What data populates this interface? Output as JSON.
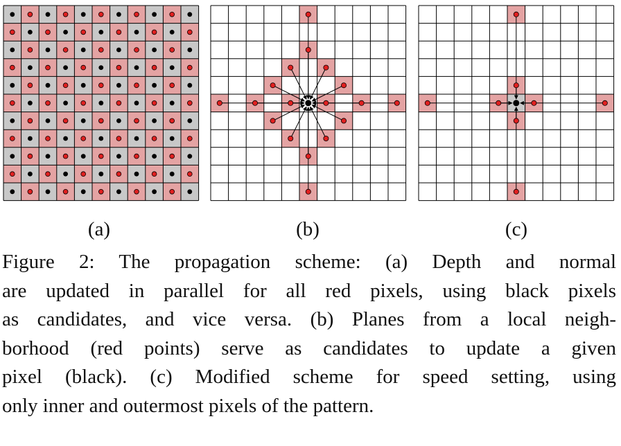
{
  "colors": {
    "red_cell": "#e4a3a3",
    "gray_cell": "#c8c8c8",
    "red_dot": "#e02020",
    "black_dot": "#000000",
    "grid_line": "#000000"
  },
  "panels": {
    "a": {
      "label": "(a)"
    },
    "b": {
      "label": "(b)"
    },
    "c": {
      "label": "(c)"
    }
  },
  "caption": {
    "lines": [
      "Figure 2: The propagation scheme: (a) Depth and normal",
      "are updated in parallel for all red pixels, using black pixels",
      "as candidates, and vice versa. (b) Planes from a local neigh-",
      "borhood (red points) serve as candidates to update a given",
      "pixel (black). (c) Modified scheme for speed setting, using",
      "only inner and outermost pixels of the pattern."
    ]
  }
}
